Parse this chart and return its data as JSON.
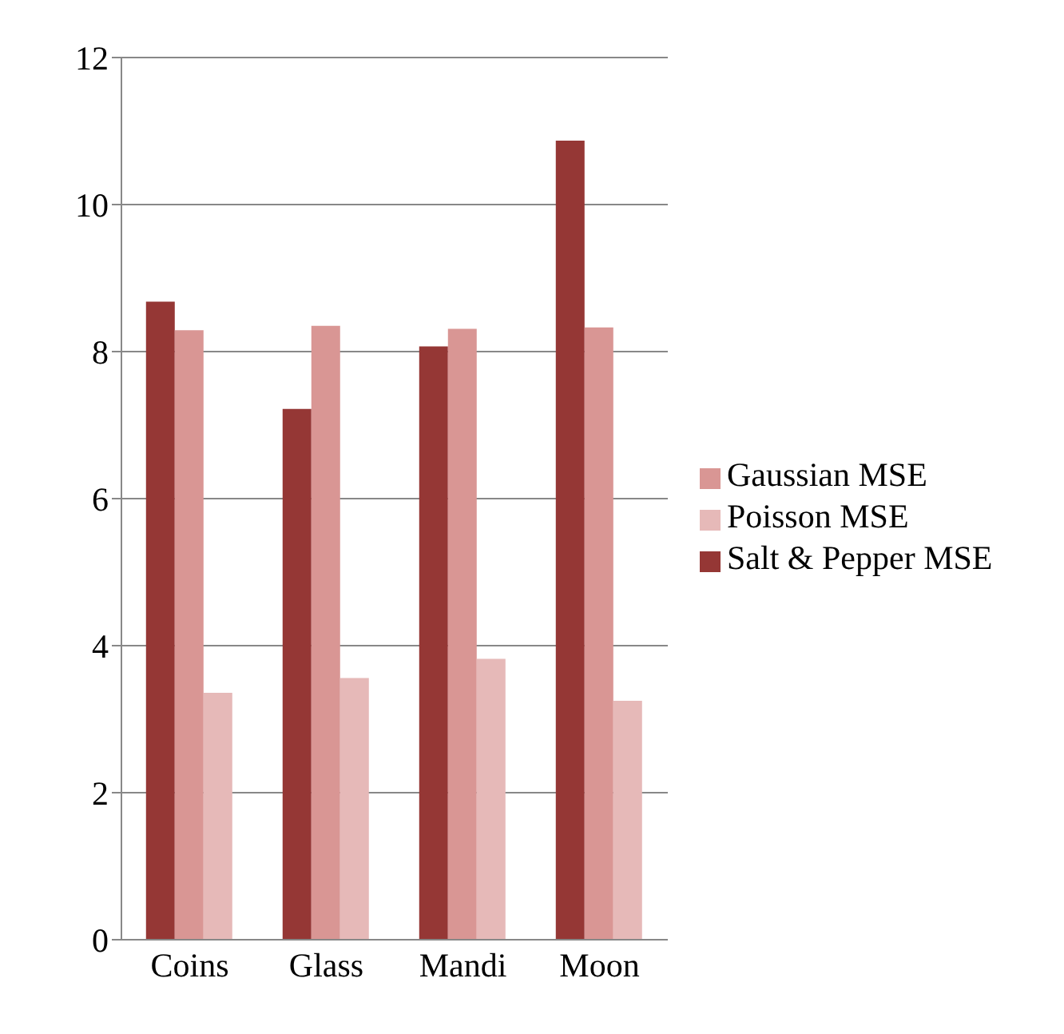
{
  "chart_data": {
    "type": "bar",
    "categories": [
      "Coins",
      "Glass",
      "Mandi",
      "Moon"
    ],
    "series": [
      {
        "name": "Salt & Pepper MSE",
        "color": "#953735",
        "values": [
          8.68,
          7.22,
          8.07,
          10.87
        ]
      },
      {
        "name": "Gaussian MSE",
        "color": "#d99694",
        "values": [
          8.29,
          8.35,
          8.31,
          8.33
        ]
      },
      {
        "name": "Poisson MSE",
        "color": "#e6b9b8",
        "values": [
          3.36,
          3.56,
          3.82,
          3.25
        ]
      }
    ],
    "ylim": [
      0,
      12
    ],
    "yticks": [
      0,
      2,
      4,
      6,
      8,
      10,
      12
    ],
    "grid": "y",
    "legend": "right"
  }
}
